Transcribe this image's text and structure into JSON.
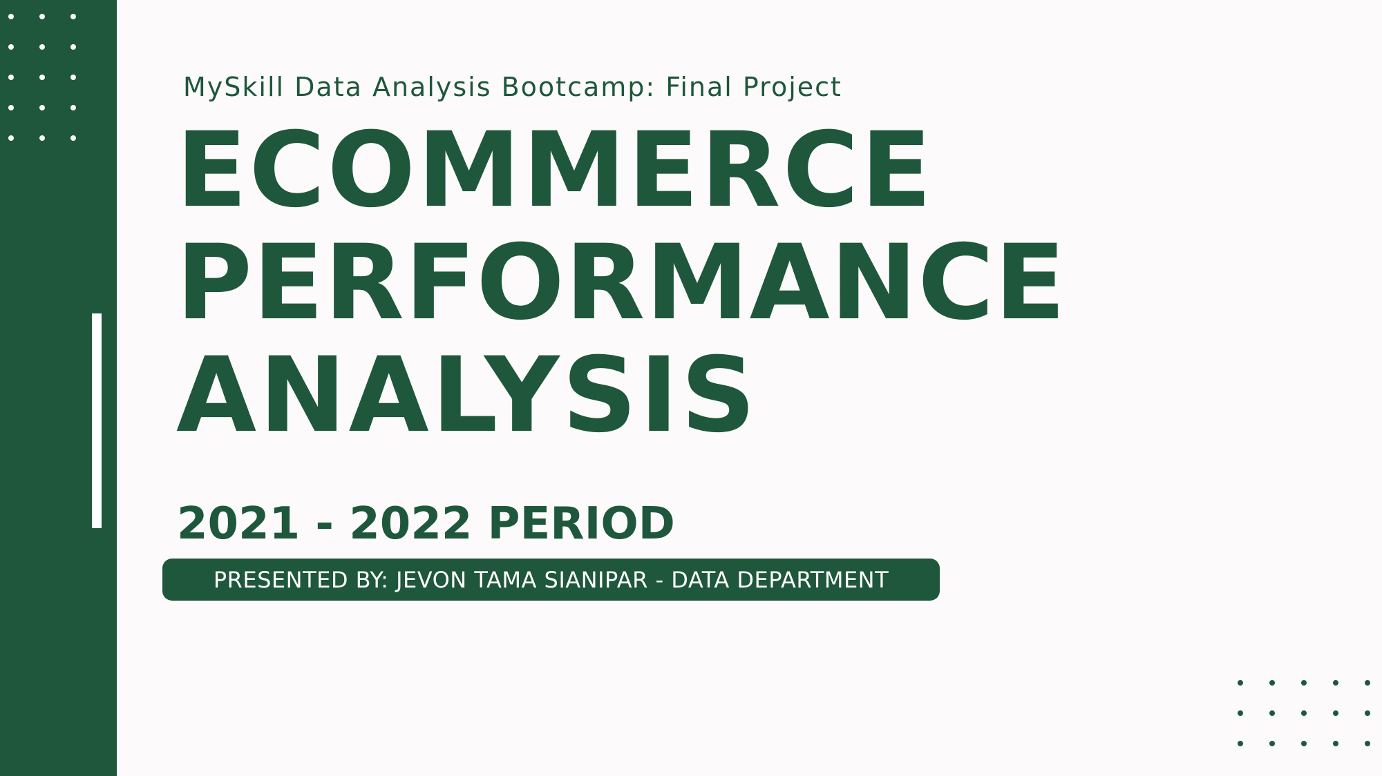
{
  "slide": {
    "subtitle": "MySkill Data Analysis Bootcamp: Final Project",
    "title_lines": [
      "ECOMMERCE",
      "PERFORMANCE",
      "ANALYSIS"
    ],
    "period": "2021 - 2022 PERIOD",
    "presenter": "PRESENTED BY: JEVON TAMA SIANIPAR - DATA DEPARTMENT"
  },
  "colors": {
    "accent": "#1e573b",
    "background": "#fcfafb",
    "light": "#ffffff"
  }
}
